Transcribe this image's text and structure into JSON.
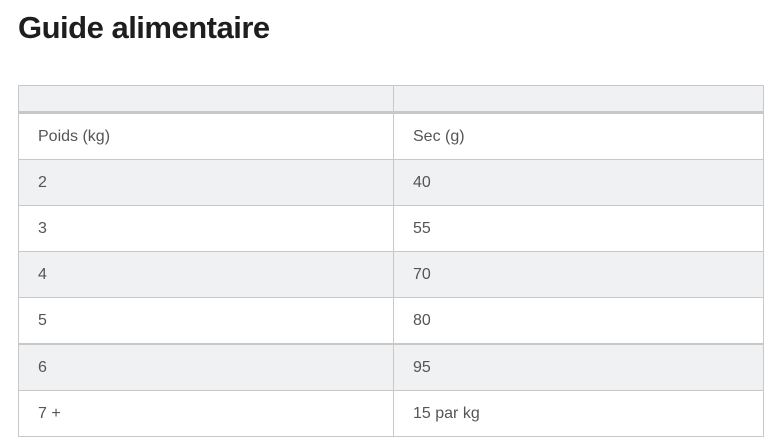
{
  "title": "Guide alimentaire",
  "table": {
    "header": [
      "",
      ""
    ],
    "rows": [
      [
        "Poids (kg)",
        "Sec (g)"
      ],
      [
        "2",
        "40"
      ],
      [
        "3",
        "55"
      ],
      [
        "4",
        "70"
      ],
      [
        "5",
        "80"
      ],
      [
        "6",
        "95"
      ],
      [
        "7 +",
        "15 par kg"
      ]
    ]
  }
}
